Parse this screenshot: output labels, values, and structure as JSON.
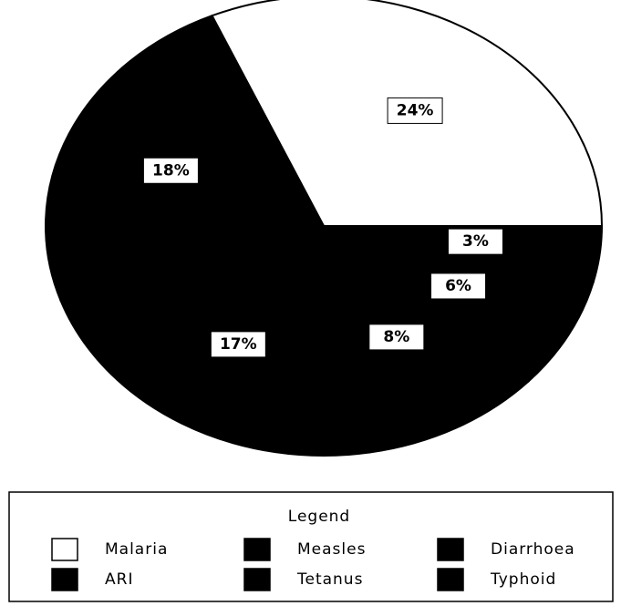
{
  "chart_data": {
    "type": "pie",
    "legend_title": "Legend",
    "categories": [
      "Malaria",
      "Measles",
      "Diarrhoea",
      "Tetanus",
      "ARI",
      "Typhoid"
    ],
    "values": [
      24,
      3,
      6,
      8,
      17,
      18
    ],
    "value_labels": [
      "24%",
      "3%",
      "6%",
      "8%",
      "17%",
      "18%"
    ],
    "colors": [
      "#ffffff",
      "#000000",
      "#000000",
      "#000000",
      "#000000",
      "#000000"
    ],
    "legend": "bottom"
  }
}
